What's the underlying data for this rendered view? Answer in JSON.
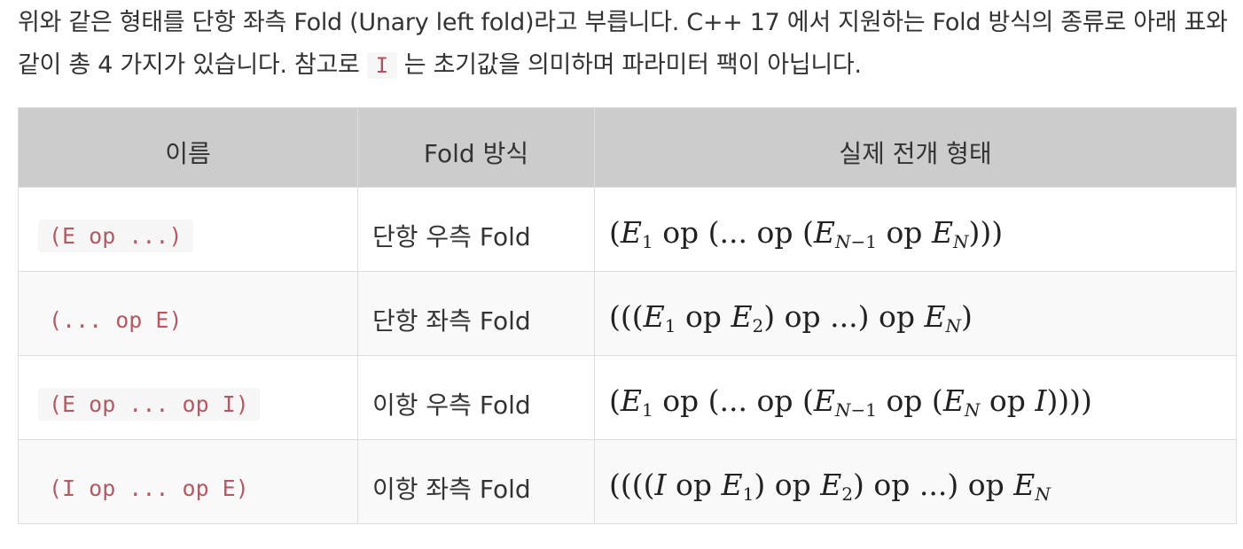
{
  "intro": {
    "text_before": "위와 같은 형태를 단항 좌측 Fold (Unary left fold)라고 부릅니다. C++ 17 에서 지원하는 Fold 방식의 종류로 아래 표와 같이 총 4 가지가 있습니다. 참고로",
    "code": "I",
    "text_after": "는 초기값을 의미하며 파라미터 팩이 아닙니다."
  },
  "table": {
    "headers": [
      "이름",
      "Fold 방식",
      "실제 전개 형태"
    ],
    "rows": [
      {
        "name": "(E op ...)",
        "kind": "단항 우측 Fold",
        "expansion": "(E1 op (... op (EN−1 op EN)))"
      },
      {
        "name": "(... op E)",
        "kind": "단항 좌측 Fold",
        "expansion": "(((E1 op E2) op ...) op EN)"
      },
      {
        "name": "(E op ... op I)",
        "kind": "이항 우측 Fold",
        "expansion": "(E1 op (... op (EN−1 op (EN op I))))"
      },
      {
        "name": "(I op ... op E)",
        "kind": "이항 좌측 Fold",
        "expansion": "((((I op E1) op E2) op ...) op EN"
      }
    ]
  }
}
